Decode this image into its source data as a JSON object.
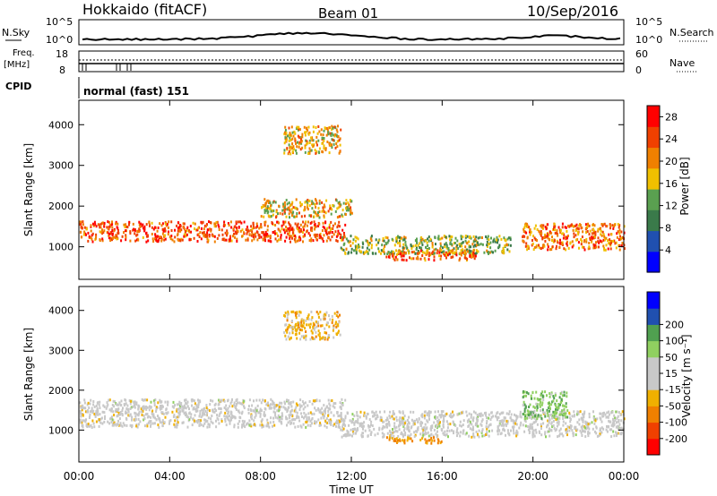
{
  "header": {
    "title": "Hokkaido (fitACF)",
    "beam": "Beam 01",
    "date": "10/Sep/2016"
  },
  "status_panels": {
    "nsky": {
      "left_label": "N.Sky",
      "left_top": "10^5",
      "left_bottom": "10^0",
      "right_top": "10^5",
      "right_bottom": "10^0",
      "right_label": "N.Search"
    },
    "freq": {
      "left_label_1": "Freq.",
      "left_label_2": "[MHz]",
      "left_top": "18",
      "left_bottom": "8",
      "right_top": "60",
      "right_bottom": "0",
      "right_label": "Nave"
    },
    "cpid": {
      "left_label": "CPID",
      "mode_text": "normal (fast) 151"
    }
  },
  "colors": {
    "power_scale": [
      "#0000ff",
      "#2050b0",
      "#3a7a4a",
      "#5aa050",
      "#f0c000",
      "#f08000",
      "#f04000",
      "#ff0000"
    ],
    "velocity_scale": [
      "#ff0000",
      "#f04000",
      "#f08000",
      "#f0b000",
      "#c8c8c8",
      "#c8c8c8",
      "#90d060",
      "#50a050",
      "#2050b0",
      "#0000ff"
    ],
    "ground_scatter": "#c8c8c8"
  },
  "chart_data": [
    {
      "type": "heatmap",
      "title": "",
      "xlabel": "Time UT",
      "ylabel": "Slant Range [km]",
      "xlim": [
        "00:00",
        "00:00"
      ],
      "xticks": [
        "00:00",
        "04:00",
        "08:00",
        "12:00",
        "16:00",
        "20:00",
        "00:00"
      ],
      "ylim": [
        200,
        4600
      ],
      "yticks": [
        1000,
        2000,
        3000,
        4000
      ],
      "colorbar": {
        "label": "Power [dB]",
        "ticks": [
          4,
          8,
          12,
          16,
          20,
          24,
          28
        ],
        "range": [
          0,
          30
        ]
      },
      "echo_regions": [
        {
          "t_start": 0.0,
          "t_end": 11.7,
          "range_start": 1150,
          "range_end": 1650,
          "power_db": 24
        },
        {
          "t_start": 11.5,
          "t_end": 19.0,
          "range_start": 850,
          "range_end": 1300,
          "power_db": 14
        },
        {
          "t_start": 13.5,
          "t_end": 17.5,
          "range_start": 700,
          "range_end": 950,
          "power_db": 22
        },
        {
          "t_start": 19.5,
          "t_end": 24.0,
          "range_start": 950,
          "range_end": 1600,
          "power_db": 22
        },
        {
          "t_start": 9.0,
          "t_end": 11.5,
          "range_start": 3300,
          "range_end": 4000,
          "power_db": 18
        },
        {
          "t_start": 8.0,
          "t_end": 12.0,
          "range_start": 1750,
          "range_end": 2200,
          "power_db": 18
        }
      ]
    },
    {
      "type": "heatmap",
      "title": "",
      "xlabel": "Time UT",
      "ylabel": "Slant Range [km]",
      "xlim": [
        "00:00",
        "00:00"
      ],
      "xticks": [
        "00:00",
        "04:00",
        "08:00",
        "12:00",
        "16:00",
        "20:00",
        "00:00"
      ],
      "ylim": [
        200,
        4600
      ],
      "yticks": [
        1000,
        2000,
        3000,
        4000
      ],
      "colorbar": {
        "label": "Velocity [m s⁻¹]",
        "ticks": [
          -200,
          -100,
          -50,
          -15,
          15,
          50,
          100,
          200
        ],
        "range": [
          -250,
          250
        ]
      },
      "echo_regions": [
        {
          "t_start": 0.0,
          "t_end": 11.7,
          "range_start": 1100,
          "range_end": 1800,
          "velocity": -10,
          "ground_scatter": true
        },
        {
          "t_start": 11.5,
          "t_end": 24.0,
          "range_start": 850,
          "range_end": 1500,
          "velocity": 0,
          "ground_scatter": true
        },
        {
          "t_start": 13.5,
          "t_end": 16.0,
          "range_start": 700,
          "range_end": 850,
          "velocity": -60
        },
        {
          "t_start": 9.0,
          "t_end": 11.5,
          "range_start": 3300,
          "range_end": 4000,
          "velocity": -30
        },
        {
          "t_start": 19.5,
          "t_end": 21.5,
          "range_start": 1300,
          "range_end": 2000,
          "velocity": 40
        }
      ]
    }
  ]
}
